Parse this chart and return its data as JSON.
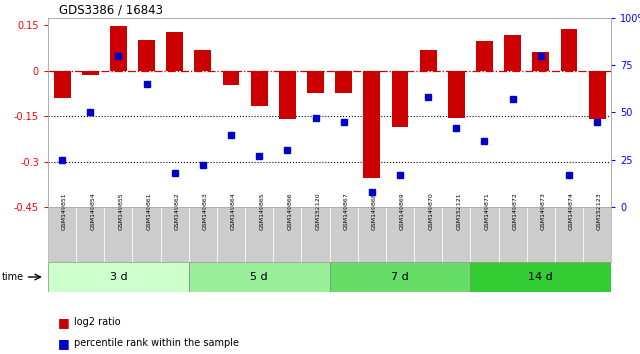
{
  "title": "GDS3386 / 16843",
  "samples": [
    "GSM149851",
    "GSM149854",
    "GSM149855",
    "GSM149861",
    "GSM149862",
    "GSM149863",
    "GSM149864",
    "GSM149865",
    "GSM149866",
    "GSM152120",
    "GSM149867",
    "GSM149868",
    "GSM149869",
    "GSM149870",
    "GSM152121",
    "GSM149871",
    "GSM149872",
    "GSM149873",
    "GSM149874",
    "GSM152123"
  ],
  "log2_ratio": [
    -0.09,
    -0.015,
    0.148,
    0.1,
    0.128,
    0.068,
    -0.048,
    -0.118,
    -0.16,
    -0.075,
    -0.075,
    -0.355,
    -0.185,
    0.068,
    -0.155,
    0.098,
    0.118,
    0.062,
    0.138,
    -0.158
  ],
  "percentile_rank": [
    25,
    50,
    80,
    65,
    18,
    22,
    38,
    27,
    30,
    47,
    45,
    8,
    17,
    58,
    42,
    35,
    57,
    80,
    17,
    45
  ],
  "time_groups": [
    {
      "label": "3 d",
      "start": 0,
      "end": 5
    },
    {
      "label": "5 d",
      "start": 5,
      "end": 10
    },
    {
      "label": "7 d",
      "start": 10,
      "end": 15
    },
    {
      "label": "14 d",
      "start": 15,
      "end": 20
    }
  ],
  "time_group_colors": [
    "#ccffcc",
    "#99ee99",
    "#66dd66",
    "#33cc33"
  ],
  "ylim_left": [
    -0.45,
    0.175
  ],
  "ylim_right": [
    0,
    100
  ],
  "yticks_left": [
    0.15,
    0.0,
    -0.15,
    -0.3,
    -0.45
  ],
  "yticks_right": [
    100,
    75,
    50,
    25,
    0
  ],
  "right_tick_labels": [
    "100%",
    "75",
    "50",
    "25",
    "0"
  ],
  "bar_color": "#cc0000",
  "dot_color": "#0000cc",
  "hline_color": "#cc0000",
  "dotted_hlines": [
    -0.15,
    -0.3
  ],
  "legend_items": [
    "log2 ratio",
    "percentile rank within the sample"
  ],
  "legend_colors": [
    "#cc0000",
    "#0000cc"
  ],
  "bg_color": "#ffffff",
  "bar_width": 0.6
}
